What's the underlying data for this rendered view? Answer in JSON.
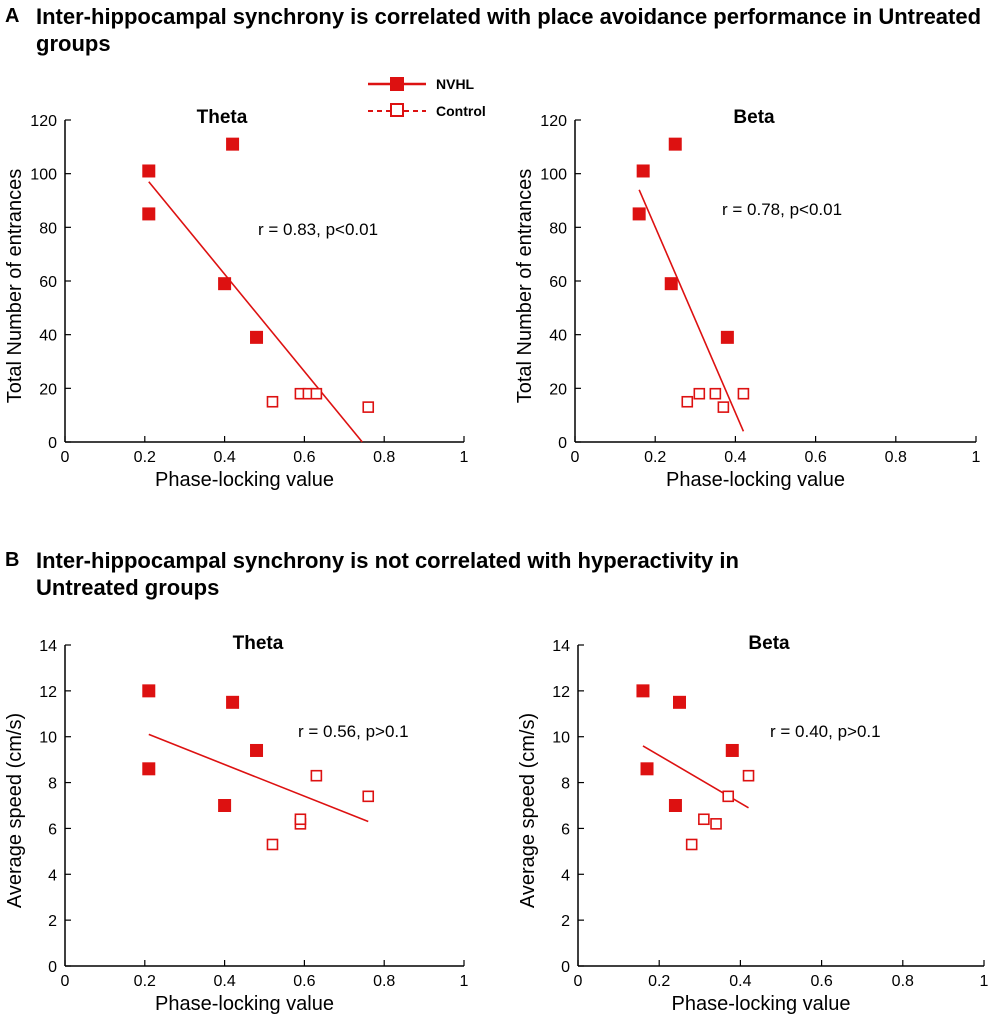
{
  "figure": {
    "panels": [
      {
        "letter": "A",
        "title": "Inter-hippocampal synchrony is correlated with place avoidance performance in Untreated groups"
      },
      {
        "letter": "B",
        "title": "Inter-hippocampal synchrony is not correlated with hyperactivity in Untreated groups"
      }
    ],
    "legend": {
      "entries": [
        "NVHL",
        "Control"
      ]
    }
  },
  "chart_data": [
    {
      "type": "scatter",
      "panel": "A",
      "title": "Theta",
      "xlabel": "Phase-locking value",
      "ylabel": "Total Number of entrances",
      "xlim": [
        0,
        1
      ],
      "ylim": [
        0,
        120
      ],
      "xticks": [
        "0",
        "0.2",
        "0.4",
        "0.6",
        "0.8",
        "1"
      ],
      "yticks": [
        "0",
        "20",
        "40",
        "60",
        "80",
        "100",
        "120"
      ],
      "series": [
        {
          "name": "NVHL",
          "marker": "filled-square",
          "x": [
            0.21,
            0.21,
            0.42,
            0.4,
            0.48
          ],
          "y": [
            101,
            85,
            111,
            59,
            39
          ]
        },
        {
          "name": "Control",
          "marker": "open-square",
          "x": [
            0.52,
            0.59,
            0.61,
            0.63,
            0.76
          ],
          "y": [
            15,
            18,
            18,
            18,
            13
          ]
        }
      ],
      "fit_line": {
        "x": [
          0.21,
          0.745
        ],
        "y": [
          97,
          0
        ]
      },
      "annotation": "r = 0.83, p<0.01"
    },
    {
      "type": "scatter",
      "panel": "A",
      "title": "Beta",
      "xlabel": "Phase-locking value",
      "ylabel": "Total Number of entrances",
      "xlim": [
        0,
        1
      ],
      "ylim": [
        0,
        120
      ],
      "xticks": [
        "0",
        "0.2",
        "0.4",
        "0.6",
        "0.8",
        "1"
      ],
      "yticks": [
        "0",
        "20",
        "40",
        "60",
        "80",
        "100",
        "120"
      ],
      "series": [
        {
          "name": "NVHL",
          "marker": "filled-square",
          "x": [
            0.25,
            0.17,
            0.16,
            0.24,
            0.38
          ],
          "y": [
            111,
            101,
            85,
            59,
            39
          ]
        },
        {
          "name": "Control",
          "marker": "open-square",
          "x": [
            0.28,
            0.31,
            0.35,
            0.37,
            0.42
          ],
          "y": [
            15,
            18,
            18,
            13,
            18
          ]
        }
      ],
      "fit_line": {
        "x": [
          0.16,
          0.42
        ],
        "y": [
          94,
          4
        ]
      },
      "annotation": "r = 0.78, p<0.01"
    },
    {
      "type": "scatter",
      "panel": "B",
      "title": "Theta",
      "xlabel": "Phase-locking value",
      "ylabel": "Average speed (cm/s)",
      "xlim": [
        0,
        1
      ],
      "ylim": [
        0,
        14
      ],
      "xticks": [
        "0",
        "0.2",
        "0.4",
        "0.6",
        "0.8",
        "1"
      ],
      "yticks": [
        "0",
        "2",
        "4",
        "6",
        "8",
        "10",
        "12",
        "14"
      ],
      "series": [
        {
          "name": "NVHL",
          "marker": "filled-square",
          "x": [
            0.21,
            0.21,
            0.42,
            0.4,
            0.48
          ],
          "y": [
            12.0,
            8.6,
            11.5,
            7.0,
            9.4
          ]
        },
        {
          "name": "Control",
          "marker": "open-square",
          "x": [
            0.52,
            0.59,
            0.59,
            0.63,
            0.76
          ],
          "y": [
            5.3,
            6.2,
            6.4,
            8.3,
            7.4
          ]
        }
      ],
      "fit_line": {
        "x": [
          0.21,
          0.76
        ],
        "y": [
          10.1,
          6.3
        ]
      },
      "annotation": "r = 0.56, p>0.1"
    },
    {
      "type": "scatter",
      "panel": "B",
      "title": "Beta",
      "xlabel": "Phase-locking value",
      "ylabel": "Average speed (cm/s)",
      "xlim": [
        0,
        1
      ],
      "ylim": [
        0,
        14
      ],
      "xticks": [
        "0",
        "0.2",
        "0.4",
        "0.6",
        "0.8",
        "1"
      ],
      "yticks": [
        "0",
        "2",
        "4",
        "6",
        "8",
        "10",
        "12",
        "14"
      ],
      "series": [
        {
          "name": "NVHL",
          "marker": "filled-square",
          "x": [
            0.16,
            0.17,
            0.25,
            0.24,
            0.38
          ],
          "y": [
            12.0,
            8.6,
            11.5,
            7.0,
            9.4
          ]
        },
        {
          "name": "Control",
          "marker": "open-square",
          "x": [
            0.28,
            0.31,
            0.34,
            0.37,
            0.42
          ],
          "y": [
            5.3,
            6.4,
            6.2,
            7.4,
            8.3
          ]
        }
      ],
      "fit_line": {
        "x": [
          0.16,
          0.42
        ],
        "y": [
          9.6,
          6.9
        ]
      },
      "annotation": "r = 0.40, p>0.1"
    }
  ]
}
